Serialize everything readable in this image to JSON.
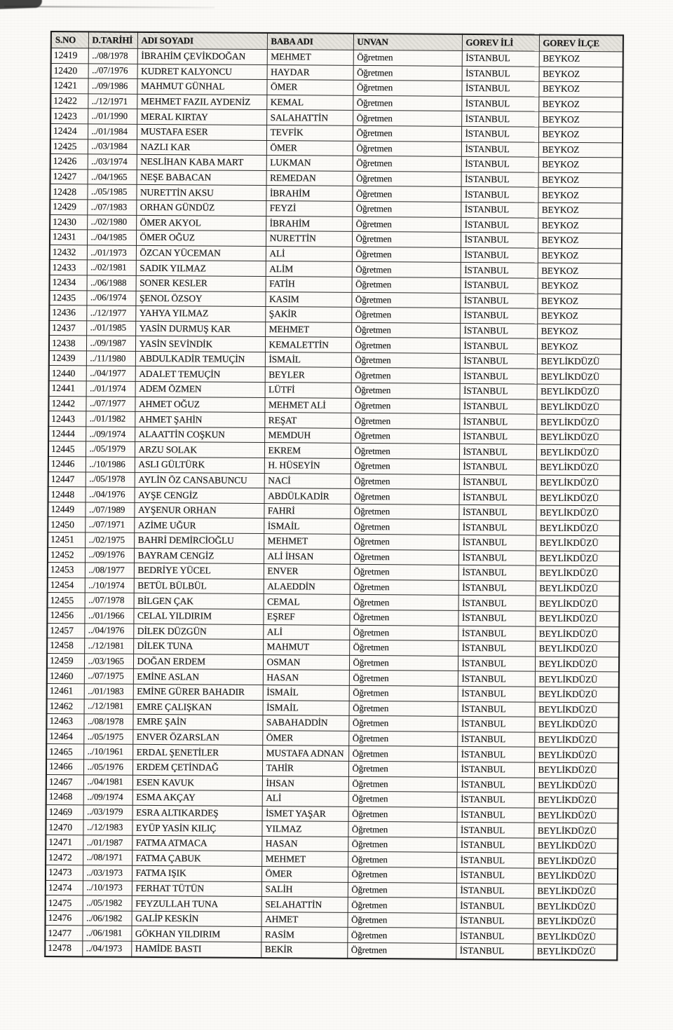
{
  "scan": {
    "background_color": "#fbfaf7",
    "ink_color": "#1c1c1c",
    "header_bg_color": "#e7e5df",
    "artifacts": [
      "top-left-ink-smudge",
      "top-edge-streak"
    ]
  },
  "table": {
    "headers": [
      "S.NO",
      "D.TARİHİ",
      "ADI SOYADI",
      "BABA ADI",
      "UNVAN",
      "GOREV İLİ",
      "GOREV İLÇE"
    ],
    "rows": [
      [
        "12419",
        "../08/1978",
        "İBRAHİM ÇEVİKDOĞAN",
        "MEHMET",
        "Öğretmen",
        "İSTANBUL",
        "BEYKOZ"
      ],
      [
        "12420",
        "../07/1976",
        "KUDRET KALYONCU",
        "HAYDAR",
        "Öğretmen",
        "İSTANBUL",
        "BEYKOZ"
      ],
      [
        "12421",
        "../09/1986",
        "MAHMUT GÜNHAL",
        "ÖMER",
        "Öğretmen",
        "İSTANBUL",
        "BEYKOZ"
      ],
      [
        "12422",
        "../12/1971",
        "MEHMET FAZIL AYDENİZ",
        "KEMAL",
        "Öğretmen",
        "İSTANBUL",
        "BEYKOZ"
      ],
      [
        "12423",
        "../01/1990",
        "MERAL KIRTAY",
        "SALAHATTİN",
        "Öğretmen",
        "İSTANBUL",
        "BEYKOZ"
      ],
      [
        "12424",
        "../01/1984",
        "MUSTAFA ESER",
        "TEVFİK",
        "Öğretmen",
        "İSTANBUL",
        "BEYKOZ"
      ],
      [
        "12425",
        "../03/1984",
        "NAZLI KAR",
        "ÖMER",
        "Öğretmen",
        "İSTANBUL",
        "BEYKOZ"
      ],
      [
        "12426",
        "../03/1974",
        "NESLİHAN KABA MART",
        "LUKMAN",
        "Öğretmen",
        "İSTANBUL",
        "BEYKOZ"
      ],
      [
        "12427",
        "../04/1965",
        "NEŞE BABACAN",
        "REMEDAN",
        "Öğretmen",
        "İSTANBUL",
        "BEYKOZ"
      ],
      [
        "12428",
        "../05/1985",
        "NURETTİN AKSU",
        "İBRAHİM",
        "Öğretmen",
        "İSTANBUL",
        "BEYKOZ"
      ],
      [
        "12429",
        "../07/1983",
        "ORHAN GÜNDÜZ",
        "FEYZİ",
        "Öğretmen",
        "İSTANBUL",
        "BEYKOZ"
      ],
      [
        "12430",
        "../02/1980",
        "ÖMER AKYOL",
        "İBRAHİM",
        "Öğretmen",
        "İSTANBUL",
        "BEYKOZ"
      ],
      [
        "12431",
        "../04/1985",
        "ÖMER OĞUZ",
        "NURETTİN",
        "Öğretmen",
        "İSTANBUL",
        "BEYKOZ"
      ],
      [
        "12432",
        "../01/1973",
        "ÖZCAN YÜCEMAN",
        "ALİ",
        "Öğretmen",
        "İSTANBUL",
        "BEYKOZ"
      ],
      [
        "12433",
        "../02/1981",
        "SADIK YILMAZ",
        "ALİM",
        "Öğretmen",
        "İSTANBUL",
        "BEYKOZ"
      ],
      [
        "12434",
        "../06/1988",
        "SONER KESLER",
        "FATİH",
        "Öğretmen",
        "İSTANBUL",
        "BEYKOZ"
      ],
      [
        "12435",
        "../06/1974",
        "ŞENOL ÖZSOY",
        "KASIM",
        "Öğretmen",
        "İSTANBUL",
        "BEYKOZ"
      ],
      [
        "12436",
        "../12/1977",
        "YAHYA YILMAZ",
        "ŞAKİR",
        "Öğretmen",
        "İSTANBUL",
        "BEYKOZ"
      ],
      [
        "12437",
        "../01/1985",
        "YASİN DURMUŞ KAR",
        "MEHMET",
        "Öğretmen",
        "İSTANBUL",
        "BEYKOZ"
      ],
      [
        "12438",
        "../09/1987",
        "YASİN SEVİNDİK",
        "KEMALETTİN",
        "Öğretmen",
        "İSTANBUL",
        "BEYKOZ"
      ],
      [
        "12439",
        "../11/1980",
        "ABDULKADİR TEMUÇİN",
        "İSMAİL",
        "Öğretmen",
        "İSTANBUL",
        "BEYLİKDÜZÜ"
      ],
      [
        "12440",
        "../04/1977",
        "ADALET TEMUÇİN",
        "BEYLER",
        "Öğretmen",
        "İSTANBUL",
        "BEYLİKDÜZÜ"
      ],
      [
        "12441",
        "../01/1974",
        "ADEM ÖZMEN",
        "LÜTFİ",
        "Öğretmen",
        "İSTANBUL",
        "BEYLİKDÜZÜ"
      ],
      [
        "12442",
        "../07/1977",
        "AHMET OĞUZ",
        "MEHMET ALİ",
        "Öğretmen",
        "İSTANBUL",
        "BEYLİKDÜZÜ"
      ],
      [
        "12443",
        "../01/1982",
        "AHMET ŞAHİN",
        "REŞAT",
        "Öğretmen",
        "İSTANBUL",
        "BEYLİKDÜZÜ"
      ],
      [
        "12444",
        "../09/1974",
        "ALAATTİN COŞKUN",
        "MEMDUH",
        "Öğretmen",
        "İSTANBUL",
        "BEYLİKDÜZÜ"
      ],
      [
        "12445",
        "../05/1979",
        "ARZU SOLAK",
        "EKREM",
        "Öğretmen",
        "İSTANBUL",
        "BEYLİKDÜZÜ"
      ],
      [
        "12446",
        "../10/1986",
        "ASLI GÜLTÜRK",
        "H. HÜSEYİN",
        "Öğretmen",
        "İSTANBUL",
        "BEYLİKDÜZÜ"
      ],
      [
        "12447",
        "../05/1978",
        "AYLİN ÖZ CANSABUNCU",
        "NACİ",
        "Öğretmen",
        "İSTANBUL",
        "BEYLİKDÜZÜ"
      ],
      [
        "12448",
        "../04/1976",
        "AYŞE CENGİZ",
        "ABDÜLKADİR",
        "Öğretmen",
        "İSTANBUL",
        "BEYLİKDÜZÜ"
      ],
      [
        "12449",
        "../07/1989",
        "AYŞENUR ORHAN",
        "FAHRİ",
        "Öğretmen",
        "İSTANBUL",
        "BEYLİKDÜZÜ"
      ],
      [
        "12450",
        "../07/1971",
        "AZİME UĞUR",
        "İSMAİL",
        "Öğretmen",
        "İSTANBUL",
        "BEYLİKDÜZÜ"
      ],
      [
        "12451",
        "../02/1975",
        "BAHRİ DEMİRCİOĞLU",
        "MEHMET",
        "Öğretmen",
        "İSTANBUL",
        "BEYLİKDÜZÜ"
      ],
      [
        "12452",
        "../09/1976",
        "BAYRAM CENGİZ",
        "ALİ İHSAN",
        "Öğretmen",
        "İSTANBUL",
        "BEYLİKDÜZÜ"
      ],
      [
        "12453",
        "../08/1977",
        "BEDRİYE YÜCEL",
        "ENVER",
        "Öğretmen",
        "İSTANBUL",
        "BEYLİKDÜZÜ"
      ],
      [
        "12454",
        "../10/1974",
        "BETÜL BÜLBÜL",
        "ALAEDDİN",
        "Öğretmen",
        "İSTANBUL",
        "BEYLİKDÜZÜ"
      ],
      [
        "12455",
        "../07/1978",
        "BİLGEN ÇAK",
        "CEMAL",
        "Öğretmen",
        "İSTANBUL",
        "BEYLİKDÜZÜ"
      ],
      [
        "12456",
        "../01/1966",
        "CELAL YILDIRIM",
        "EŞREF",
        "Öğretmen",
        "İSTANBUL",
        "BEYLİKDÜZÜ"
      ],
      [
        "12457",
        "../04/1976",
        "DİLEK DÜZGÜN",
        "ALİ",
        "Öğretmen",
        "İSTANBUL",
        "BEYLİKDÜZÜ"
      ],
      [
        "12458",
        "../12/1981",
        "DİLEK TUNA",
        "MAHMUT",
        "Öğretmen",
        "İSTANBUL",
        "BEYLİKDÜZÜ"
      ],
      [
        "12459",
        "../03/1965",
        "DOĞAN ERDEM",
        "OSMAN",
        "Öğretmen",
        "İSTANBUL",
        "BEYLİKDÜZÜ"
      ],
      [
        "12460",
        "../07/1975",
        "EMİNE ASLAN",
        "HASAN",
        "Öğretmen",
        "İSTANBUL",
        "BEYLİKDÜZÜ"
      ],
      [
        "12461",
        "../01/1983",
        "EMİNE GÜRER BAHADIR",
        "İSMAİL",
        "Öğretmen",
        "İSTANBUL",
        "BEYLİKDÜZÜ"
      ],
      [
        "12462",
        "../12/1981",
        "EMRE ÇALIŞKAN",
        "İSMAİL",
        "Öğretmen",
        "İSTANBUL",
        "BEYLİKDÜZÜ"
      ],
      [
        "12463",
        "../08/1978",
        "EMRE ŞAİN",
        "SABAHADDİN",
        "Öğretmen",
        "İSTANBUL",
        "BEYLİKDÜZÜ"
      ],
      [
        "12464",
        "../05/1975",
        "ENVER ÖZARSLAN",
        "ÖMER",
        "Öğretmen",
        "İSTANBUL",
        "BEYLİKDÜZÜ"
      ],
      [
        "12465",
        "../10/1961",
        "ERDAL ŞENETİLER",
        "MUSTAFA ADNAN",
        "Öğretmen",
        "İSTANBUL",
        "BEYLİKDÜZÜ"
      ],
      [
        "12466",
        "../05/1976",
        "ERDEM ÇETİNDAĞ",
        "TAHİR",
        "Öğretmen",
        "İSTANBUL",
        "BEYLİKDÜZÜ"
      ],
      [
        "12467",
        "../04/1981",
        "ESEN KAVUK",
        "İHSAN",
        "Öğretmen",
        "İSTANBUL",
        "BEYLİKDÜZÜ"
      ],
      [
        "12468",
        "../09/1974",
        "ESMA AKÇAY",
        "ALİ",
        "Öğretmen",
        "İSTANBUL",
        "BEYLİKDÜZÜ"
      ],
      [
        "12469",
        "../03/1979",
        "ESRA ALTIKARDEŞ",
        "İSMET YAŞAR",
        "Öğretmen",
        "İSTANBUL",
        "BEYLİKDÜZÜ"
      ],
      [
        "12470",
        "../12/1983",
        "EYÜP YASİN KILIÇ",
        "YILMAZ",
        "Öğretmen",
        "İSTANBUL",
        "BEYLİKDÜZÜ"
      ],
      [
        "12471",
        "../01/1987",
        "FATMA ATMACA",
        "HASAN",
        "Öğretmen",
        "İSTANBUL",
        "BEYLİKDÜZÜ"
      ],
      [
        "12472",
        "../08/1971",
        "FATMA ÇABUK",
        "MEHMET",
        "Öğretmen",
        "İSTANBUL",
        "BEYLİKDÜZÜ"
      ],
      [
        "12473",
        "../03/1973",
        "FATMA IŞIK",
        "ÖMER",
        "Öğretmen",
        "İSTANBUL",
        "BEYLİKDÜZÜ"
      ],
      [
        "12474",
        "../10/1973",
        "FERHAT TÜTÜN",
        "SALİH",
        "Öğretmen",
        "İSTANBUL",
        "BEYLİKDÜZÜ"
      ],
      [
        "12475",
        "../05/1982",
        "FEYZULLAH TUNA",
        "SELAHATTİN",
        "Öğretmen",
        "İSTANBUL",
        "BEYLİKDÜZÜ"
      ],
      [
        "12476",
        "../06/1982",
        "GALİP KESKİN",
        "AHMET",
        "Öğretmen",
        "İSTANBUL",
        "BEYLİKDÜZÜ"
      ],
      [
        "12477",
        "../06/1981",
        "GÖKHAN YILDIRIM",
        "RASİM",
        "Öğretmen",
        "İSTANBUL",
        "BEYLİKDÜZÜ"
      ],
      [
        "12478",
        "../04/1973",
        "HAMİDE BASTI",
        "BEKİR",
        "Öğretmen",
        "İSTANBUL",
        "BEYLİKDÜZÜ"
      ]
    ]
  }
}
